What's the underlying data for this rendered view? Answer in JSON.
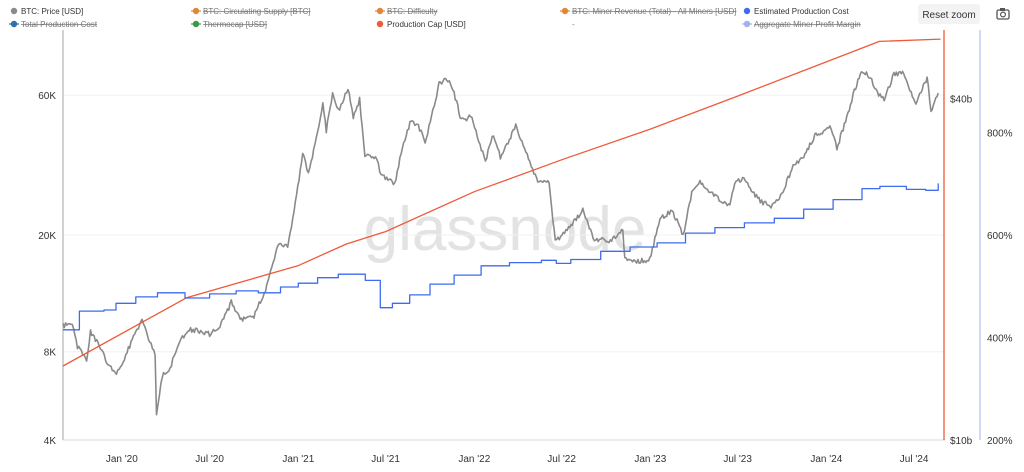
{
  "toolbar": {
    "reset_zoom_label": "Reset zoom",
    "camera_icon": "camera-icon"
  },
  "legend": {
    "items": [
      {
        "label": "BTC: Price [USD]",
        "color": "#8a8a8a",
        "active": true
      },
      {
        "label": "BTC: Circulating Supply [BTC]",
        "color": "#e0873a",
        "active": false
      },
      {
        "label": "BTC: Difficulty",
        "color": "#e0873a",
        "active": false
      },
      {
        "label": "BTC: Miner Revenue (Total) - All Miners [USD]",
        "color": "#e0873a",
        "active": false
      },
      {
        "label": "Estimated Production Cost",
        "color": "#3d6cf0",
        "active": true
      },
      {
        "label": "Total Production Cost",
        "color": "#2f6fb0",
        "active": false
      },
      {
        "label": "Thermocap [USD]",
        "color": "#3a9a4a",
        "active": false
      },
      {
        "label": "Production Cap [USD]",
        "color": "#ee5a3a",
        "active": true
      },
      {
        "label": "-",
        "color": "#999999",
        "active": false,
        "marker": "none"
      },
      {
        "label": "Aggregate Miner Profit Margin",
        "color": "#9fb3ee",
        "active": false
      }
    ]
  },
  "watermark": "glassnode",
  "chart_data": {
    "type": "line",
    "x_tick_labels": [
      "Jan '20",
      "Jul '20",
      "Jan '21",
      "Jul '21",
      "Jan '22",
      "Jul '22",
      "Jan '23",
      "Jul '23",
      "Jan '24",
      "Jul '24"
    ],
    "x_ticks": [
      "2020-01-01",
      "2020-07-01",
      "2021-01-01",
      "2021-07-01",
      "2022-01-01",
      "2022-07-01",
      "2023-01-01",
      "2023-07-01",
      "2024-01-01",
      "2024-07-01"
    ],
    "xlim": [
      "2019-09-01",
      "2024-09-01"
    ],
    "y_left": {
      "scale": "log",
      "lim": [
        4000,
        100000
      ],
      "ticks": [
        4000,
        8000,
        20000,
        60000
      ],
      "tick_labels": [
        "4K",
        "8K",
        "20K",
        "60K"
      ]
    },
    "y_right_cap": {
      "scale": "linear",
      "lim": [
        10,
        46
      ],
      "ticks": [
        10,
        40
      ],
      "tick_labels": [
        "$10b",
        "$40b"
      ]
    },
    "y_right_margin": {
      "scale": "linear",
      "lim": [
        200,
        1000
      ],
      "ticks": [
        200,
        400,
        600,
        800
      ],
      "tick_labels": [
        "200%",
        "400%",
        "600%",
        "800%"
      ]
    },
    "series": [
      {
        "name": "BTC: Price [USD]",
        "axis": "y_left",
        "color": "#8a8a8a",
        "points": [
          [
            "2019-09-01",
            9800
          ],
          [
            "2019-09-20",
            10000
          ],
          [
            "2019-10-01",
            8300
          ],
          [
            "2019-10-20",
            7500
          ],
          [
            "2019-10-28",
            9300
          ],
          [
            "2019-11-15",
            8500
          ],
          [
            "2019-12-01",
            7400
          ],
          [
            "2019-12-18",
            6700
          ],
          [
            "2020-01-01",
            7200
          ],
          [
            "2020-01-20",
            8600
          ],
          [
            "2020-02-12",
            10300
          ],
          [
            "2020-02-28",
            8700
          ],
          [
            "2020-03-10",
            7900
          ],
          [
            "2020-03-13",
            4900
          ],
          [
            "2020-03-25",
            6600
          ],
          [
            "2020-04-10",
            7000
          ],
          [
            "2020-04-30",
            8800
          ],
          [
            "2020-05-20",
            9500
          ],
          [
            "2020-06-15",
            9400
          ],
          [
            "2020-07-01",
            9200
          ],
          [
            "2020-07-25",
            9900
          ],
          [
            "2020-08-15",
            11800
          ],
          [
            "2020-09-05",
            10300
          ],
          [
            "2020-10-01",
            10600
          ],
          [
            "2020-10-25",
            13000
          ],
          [
            "2020-11-20",
            18500
          ],
          [
            "2020-12-10",
            18200
          ],
          [
            "2020-12-31",
            29000
          ],
          [
            "2021-01-10",
            38000
          ],
          [
            "2021-01-22",
            32000
          ],
          [
            "2021-02-10",
            45000
          ],
          [
            "2021-02-21",
            56000
          ],
          [
            "2021-02-28",
            45500
          ],
          [
            "2021-03-13",
            60000
          ],
          [
            "2021-03-25",
            53000
          ],
          [
            "2021-04-14",
            63500
          ],
          [
            "2021-04-25",
            50000
          ],
          [
            "2021-05-08",
            58000
          ],
          [
            "2021-05-19",
            37000
          ],
          [
            "2021-06-10",
            37000
          ],
          [
            "2021-06-22",
            32000
          ],
          [
            "2021-07-20",
            30000
          ],
          [
            "2021-08-05",
            40000
          ],
          [
            "2021-08-23",
            49500
          ],
          [
            "2021-09-07",
            47000
          ],
          [
            "2021-09-21",
            41500
          ],
          [
            "2021-10-15",
            60000
          ],
          [
            "2021-10-20",
            66000
          ],
          [
            "2021-11-10",
            68000
          ],
          [
            "2021-11-25",
            57000
          ],
          [
            "2021-12-05",
            49000
          ],
          [
            "2021-12-27",
            51000
          ],
          [
            "2022-01-10",
            42000
          ],
          [
            "2022-01-24",
            36000
          ],
          [
            "2022-02-10",
            44000
          ],
          [
            "2022-02-24",
            37000
          ],
          [
            "2022-03-28",
            47000
          ],
          [
            "2022-04-15",
            40000
          ],
          [
            "2022-05-10",
            31000
          ],
          [
            "2022-06-05",
            30000
          ],
          [
            "2022-06-18",
            19000
          ],
          [
            "2022-07-10",
            20500
          ],
          [
            "2022-08-14",
            24300
          ],
          [
            "2022-09-07",
            19000
          ],
          [
            "2022-09-20",
            19300
          ],
          [
            "2022-10-10",
            19100
          ],
          [
            "2022-11-05",
            21000
          ],
          [
            "2022-11-09",
            16500
          ],
          [
            "2022-11-28",
            16200
          ],
          [
            "2022-12-31",
            16500
          ],
          [
            "2023-01-21",
            22700
          ],
          [
            "2023-02-15",
            24300
          ],
          [
            "2023-03-10",
            20000
          ],
          [
            "2023-03-28",
            28000
          ],
          [
            "2023-04-14",
            30400
          ],
          [
            "2023-05-10",
            27500
          ],
          [
            "2023-06-15",
            25000
          ],
          [
            "2023-06-25",
            30500
          ],
          [
            "2023-07-14",
            31000
          ],
          [
            "2023-08-17",
            26000
          ],
          [
            "2023-09-11",
            25000
          ],
          [
            "2023-10-01",
            27500
          ],
          [
            "2023-10-24",
            34500
          ],
          [
            "2023-11-15",
            37000
          ],
          [
            "2023-12-08",
            43500
          ],
          [
            "2024-01-11",
            46500
          ],
          [
            "2024-01-23",
            39500
          ],
          [
            "2024-02-15",
            52000
          ],
          [
            "2024-02-28",
            62000
          ],
          [
            "2024-03-14",
            73000
          ],
          [
            "2024-04-01",
            69000
          ],
          [
            "2024-04-13",
            62000
          ],
          [
            "2024-04-30",
            58000
          ],
          [
            "2024-05-20",
            71000
          ],
          [
            "2024-06-07",
            71000
          ],
          [
            "2024-06-25",
            61000
          ],
          [
            "2024-07-05",
            56000
          ],
          [
            "2024-07-28",
            69000
          ],
          [
            "2024-08-05",
            53000
          ],
          [
            "2024-08-20",
            61000
          ]
        ]
      },
      {
        "name": "Production Cap [USD]",
        "axis": "y_right_cap",
        "color": "#ee5a3a",
        "points": [
          [
            "2019-09-01",
            16.5
          ],
          [
            "2020-05-15",
            22.5
          ],
          [
            "2020-12-31",
            25.3
          ],
          [
            "2021-04-10",
            27.2
          ],
          [
            "2021-07-01",
            28.3
          ],
          [
            "2022-01-01",
            31.8
          ],
          [
            "2022-07-01",
            34.6
          ],
          [
            "2023-01-01",
            37.3
          ],
          [
            "2023-07-01",
            40.2
          ],
          [
            "2024-01-01",
            43.2
          ],
          [
            "2024-04-20",
            45.0
          ],
          [
            "2024-08-25",
            45.2
          ]
        ]
      },
      {
        "name": "Estimated Production Cost",
        "axis": "y_left",
        "color": "#3d6cf0",
        "step": true,
        "points": [
          [
            "2019-09-01",
            9500
          ],
          [
            "2019-10-05",
            11000
          ],
          [
            "2019-11-25",
            11100
          ],
          [
            "2019-12-20",
            11700
          ],
          [
            "2020-01-30",
            12300
          ],
          [
            "2020-03-15",
            12700
          ],
          [
            "2020-05-11",
            12200
          ],
          [
            "2020-07-01",
            12600
          ],
          [
            "2020-08-25",
            12900
          ],
          [
            "2020-10-10",
            12700
          ],
          [
            "2020-11-25",
            13300
          ],
          [
            "2021-01-01",
            13700
          ],
          [
            "2021-02-10",
            14300
          ],
          [
            "2021-03-25",
            14700
          ],
          [
            "2021-05-20",
            14000
          ],
          [
            "2021-06-20",
            11300
          ],
          [
            "2021-07-15",
            11700
          ],
          [
            "2021-08-20",
            12500
          ],
          [
            "2021-10-01",
            13600
          ],
          [
            "2021-11-20",
            14600
          ],
          [
            "2022-01-15",
            15700
          ],
          [
            "2022-03-15",
            16100
          ],
          [
            "2022-05-20",
            16400
          ],
          [
            "2022-06-20",
            16000
          ],
          [
            "2022-07-20",
            16500
          ],
          [
            "2022-09-20",
            17600
          ],
          [
            "2022-11-20",
            18200
          ],
          [
            "2023-01-15",
            18800
          ],
          [
            "2023-03-15",
            20300
          ],
          [
            "2023-05-15",
            21200
          ],
          [
            "2023-07-15",
            22000
          ],
          [
            "2023-09-15",
            22800
          ],
          [
            "2023-11-15",
            24500
          ],
          [
            "2024-01-15",
            26400
          ],
          [
            "2024-03-15",
            28800
          ],
          [
            "2024-04-21",
            29300
          ],
          [
            "2024-06-15",
            28600
          ],
          [
            "2024-07-25",
            28400
          ],
          [
            "2024-08-20",
            30000
          ]
        ]
      }
    ]
  }
}
